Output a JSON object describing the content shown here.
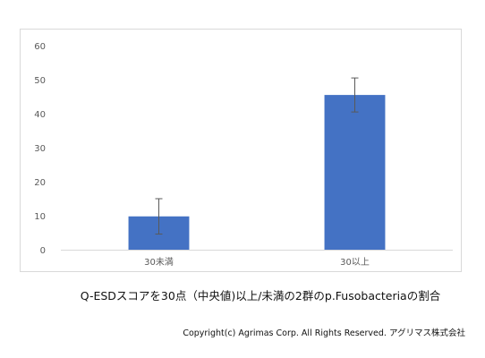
{
  "chart_data": {
    "type": "bar",
    "categories": [
      "30未満",
      "30以上"
    ],
    "values": [
      9.8,
      45.5
    ],
    "error": [
      5.2,
      5.0
    ],
    "ylim": [
      0,
      60
    ],
    "yticks": [
      "0",
      "10",
      "20",
      "30",
      "40",
      "50",
      "60"
    ],
    "ytick_values": [
      0,
      10,
      20,
      30,
      40,
      50,
      60
    ],
    "grid": false,
    "bar_color": "#4472c4",
    "error_color": "#595959",
    "axis_color": "#d9d9d9"
  },
  "caption": "Q-ESDスコアを30点（中央値)以上/未満の2群のp.Fusobacteriaの割合",
  "copyright": "Copyright(c) Agrimas Corp. All Rights Reserved. アグリマス株式会社"
}
